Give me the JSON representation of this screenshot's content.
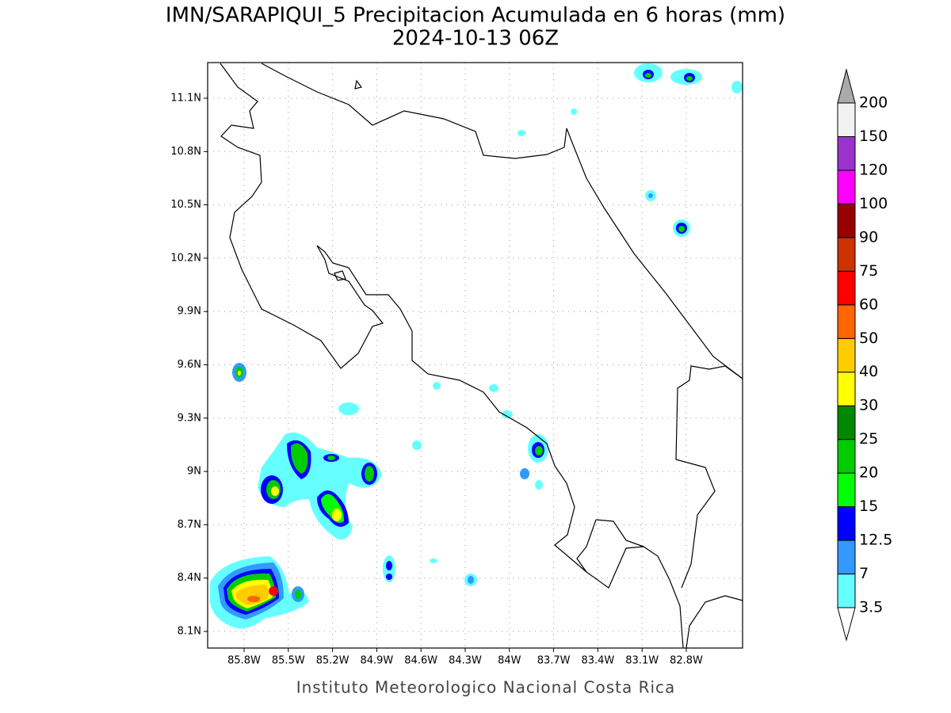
{
  "title": [
    "IMN/SARAPIQUI_5 Precipitacion Acumulada en 6 horas (mm)",
    "2024-10-13 06Z"
  ],
  "lat_labels": [
    "11.1N",
    "10.8N",
    "10.5N",
    "10.2N",
    "9.9N",
    "9.6N",
    "9.3N",
    "9N",
    "8.7N",
    "8.4N",
    "8.1N"
  ],
  "lon_labels": [
    "85.8W",
    "85.5W",
    "85.2W",
    "84.9W",
    "84.6W",
    "84.3W",
    "84W",
    "83.7W",
    "83.4W",
    "83.1W",
    "82.8W"
  ],
  "colorbar": {
    "labels": [
      3.5,
      7,
      12.5,
      15,
      20,
      25,
      30,
      40,
      50,
      60,
      75,
      90,
      100,
      120,
      150,
      200
    ],
    "colors": [
      "#66ffff",
      "#3399ff",
      "#0000ff",
      "#00ff00",
      "#00cc00",
      "#008800",
      "#ffff00",
      "#ffcc00",
      "#ff6600",
      "#ff0000",
      "#cc3300",
      "#990000",
      "#ff00ff",
      "#9933cc",
      "#f2f2f2"
    ],
    "over_color": "#aaaaaa",
    "under_color": "#ffffff"
  },
  "footer": "Instituto Meteorologico Nacional Costa Rica"
}
